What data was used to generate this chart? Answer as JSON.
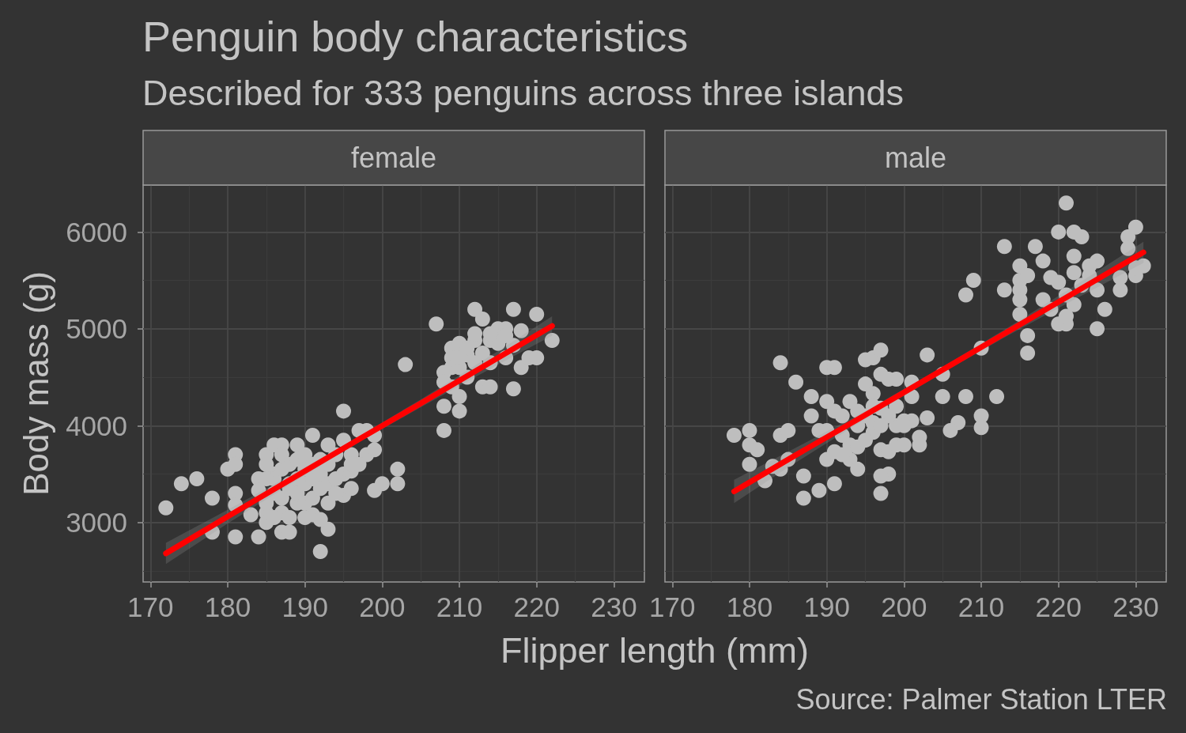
{
  "chart_data": [
    {
      "type": "other",
      "title": "Penguin body characteristics",
      "subtitle": "Described for 333 penguins across three islands",
      "annotations": [
        "Source: Palmer Station LTER"
      ]
    },
    {
      "type": "scatter",
      "title": "female",
      "xlabel": "Flipper length (mm)",
      "ylabel": "Body mass (g)",
      "xlim": [
        169.05,
        233.95
      ],
      "ylim": [
        2385,
        6485
      ],
      "xticks": [
        170,
        180,
        190,
        200,
        210,
        220,
        230
      ],
      "yticks": [
        3000,
        4000,
        5000,
        6000
      ],
      "grid": true,
      "marker": "circle",
      "series": [
        {
          "color": "#bebebe",
          "x": [
            172,
            174,
            176,
            178,
            178,
            180,
            181,
            181,
            181,
            181,
            181,
            184,
            183,
            184,
            184,
            185,
            185,
            185,
            186,
            187,
            185,
            187,
            188,
            186,
            189,
            191,
            193,
            195,
            195,
            198,
            198,
            199,
            193,
            193,
            192,
            191,
            189,
            195,
            195,
            196,
            196,
            199,
            199,
            202,
            202,
            200,
            203,
            207,
            208,
            208,
            208,
            208,
            209,
            210,
            210,
            210,
            209,
            209,
            212,
            212,
            213,
            213,
            214,
            214,
            215,
            216,
            217,
            217,
            218,
            218,
            219,
            220,
            220,
            222,
            216,
            214,
            211,
            211,
            212,
            217,
            186,
            186,
            187,
            187,
            187,
            188,
            188,
            188,
            189,
            189,
            189,
            190,
            190,
            190,
            190,
            191,
            191,
            191,
            192,
            192,
            192,
            193,
            193,
            194,
            194,
            196,
            197,
            185,
            185,
            187,
            186,
            188,
            190,
            192,
            210,
            211,
            209,
            210,
            212,
            213,
            215,
            216,
            214,
            197,
            194,
            196
          ],
          "values": [
            3150,
            3400,
            3450,
            3250,
            2900,
            3550,
            3700,
            3600,
            3300,
            3180,
            2850,
            2850,
            3080,
            3450,
            3330,
            3700,
            3600,
            3100,
            3800,
            3800,
            3000,
            2900,
            2900,
            3500,
            3800,
            3900,
            3800,
            3850,
            4150,
            3950,
            3700,
            3330,
            3200,
            2930,
            2700,
            3080,
            3200,
            3500,
            3280,
            3530,
            3700,
            3900,
            3750,
            3550,
            3400,
            3400,
            4630,
            5050,
            3950,
            4200,
            4550,
            4450,
            4800,
            4850,
            4150,
            4300,
            4700,
            4600,
            4880,
            5200,
            5100,
            4400,
            4400,
            4880,
            5000,
            5000,
            5200,
            4380,
            4980,
            4600,
            4700,
            4700,
            5150,
            4880,
            4700,
            4650,
            4730,
            4500,
            4950,
            4830,
            3300,
            3450,
            3100,
            3250,
            3550,
            3400,
            3600,
            3350,
            3450,
            3650,
            3300,
            3200,
            3400,
            3550,
            3700,
            3250,
            3450,
            3600,
            3350,
            3500,
            3650,
            3400,
            3600,
            3450,
            3700,
            3350,
            3600,
            3200,
            3450,
            3700,
            3050,
            3050,
            3050,
            3030,
            4600,
            4800,
            4400,
            4700,
            4650,
            4750,
            4850,
            4930,
            4950,
            3950,
            3300,
            3600
          ]
        },
        {
          "type": "line",
          "color": "#ff0000",
          "marker": "none",
          "x": [
            172,
            180,
            190,
            197,
            205,
            215,
            222
          ],
          "values": [
            2680,
            3060,
            3530,
            3860,
            4230,
            4700,
            5030
          ],
          "lower": [
            2570,
            2990,
            3490,
            3830,
            4190,
            4630,
            4930
          ],
          "upper": [
            2790,
            3130,
            3570,
            3890,
            4270,
            4770,
            5130
          ]
        }
      ]
    },
    {
      "type": "scatter",
      "title": "male",
      "xlim": [
        169.05,
        233.95
      ],
      "ylim": [
        2385,
        6485
      ],
      "xticks": [
        170,
        180,
        190,
        200,
        210,
        220,
        230
      ],
      "yticks": [
        3000,
        4000,
        5000,
        6000
      ],
      "tick_labels": "x",
      "grid": true,
      "marker": "circle",
      "series": [
        {
          "color": "#bebebe",
          "x": [
            178,
            180,
            180,
            181,
            180,
            182,
            183,
            184,
            185,
            184,
            185,
            184,
            186,
            188,
            188,
            187,
            187,
            189,
            191,
            189,
            190,
            190,
            191,
            191,
            192,
            190,
            190,
            191,
            193,
            193,
            193,
            194,
            194,
            195,
            195,
            196,
            197,
            196,
            197,
            197,
            197,
            198,
            197,
            197,
            198,
            199,
            198,
            199,
            200,
            199,
            200,
            201,
            201,
            201,
            202,
            202,
            203,
            203,
            196,
            195,
            196,
            205,
            205,
            208,
            212,
            210,
            210,
            210,
            207,
            206,
            216,
            216,
            208,
            209,
            213,
            213,
            215,
            215,
            215,
            215,
            215,
            216,
            217,
            218,
            218,
            219,
            219,
            220,
            220,
            221,
            221,
            221,
            220,
            221,
            222,
            223,
            222,
            222,
            222,
            223,
            224,
            225,
            225,
            225,
            226,
            228,
            228,
            229,
            230,
            229,
            230,
            230,
            231,
            224,
            194,
            195,
            198,
            196,
            192,
            194,
            199,
            200,
            197,
            192
          ],
          "values": [
            3900,
            3950,
            3800,
            3750,
            3600,
            3430,
            3580,
            3550,
            3650,
            3900,
            3950,
            4650,
            4450,
            4300,
            4100,
            3480,
            3250,
            3330,
            3400,
            3950,
            4250,
            4600,
            4600,
            4150,
            4100,
            3950,
            3650,
            3730,
            4250,
            3800,
            3650,
            3550,
            3780,
            4430,
            4680,
            4700,
            4780,
            3930,
            4530,
            4180,
            3750,
            3500,
            3300,
            3480,
            4480,
            4480,
            3730,
            3800,
            3800,
            4000,
            4050,
            4450,
            4300,
            4050,
            3880,
            3800,
            4730,
            4080,
            4330,
            4100,
            4030,
            4530,
            4300,
            4300,
            4300,
            4800,
            4100,
            3980,
            4030,
            3950,
            4930,
            4750,
            5350,
            5500,
            5850,
            5400,
            5650,
            5500,
            5400,
            5300,
            5150,
            5550,
            5850,
            5700,
            5300,
            5530,
            5200,
            6000,
            5050,
            6300,
            5050,
            5130,
            5480,
            5350,
            6000,
            5950,
            5750,
            5580,
            5250,
            5450,
            5650,
            5700,
            5400,
            5000,
            5200,
            5400,
            5530,
            5950,
            6050,
            5830,
            5550,
            5630,
            5650,
            5550,
            4000,
            3850,
            4100,
            4200,
            3900,
            4150,
            4200,
            4000,
            4000,
            3700
          ]
        },
        {
          "type": "line",
          "color": "#ff0000",
          "marker": "none",
          "x": [
            178,
            185,
            195,
            204,
            213,
            222,
            231
          ],
          "values": [
            3320,
            3650,
            4110,
            4530,
            4950,
            5370,
            5790
          ],
          "lower": [
            3200,
            3570,
            4070,
            4500,
            4910,
            5300,
            5680
          ],
          "upper": [
            3440,
            3730,
            4150,
            4560,
            4990,
            5440,
            5900
          ]
        }
      ]
    }
  ]
}
